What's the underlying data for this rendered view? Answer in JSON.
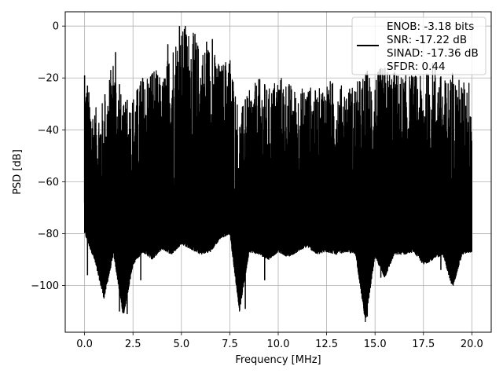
{
  "chart_data": {
    "type": "line",
    "title": "",
    "xlabel": "Frequency [MHz]",
    "ylabel": "PSD [dB]",
    "xlim": [
      -1.0,
      21.0
    ],
    "ylim": [
      -118,
      5.5
    ],
    "grid": true,
    "legend_position": "top-right",
    "x_ticks": [
      0.0,
      2.5,
      5.0,
      7.5,
      10.0,
      12.5,
      15.0,
      17.5,
      20.0
    ],
    "x_tick_labels": [
      "0.0",
      "2.5",
      "5.0",
      "7.5",
      "10.0",
      "12.5",
      "15.0",
      "17.5",
      "20.0"
    ],
    "y_ticks": [
      0,
      -20,
      -40,
      -60,
      -80,
      -100
    ],
    "y_tick_labels": [
      "0",
      "−20",
      "−40",
      "−60",
      "−80",
      "−100"
    ],
    "legend_lines": [
      "ENOB: -3.18 bits",
      "SNR: -17.22 dB",
      "SINAD: -17.36 dB",
      "SFDR: 0.44"
    ],
    "series": [
      {
        "color": "#000000",
        "x": [
          0.0,
          0.5,
          1.0,
          1.5,
          2.0,
          2.5,
          3.0,
          3.5,
          4.0,
          4.5,
          5.0,
          5.5,
          6.0,
          6.5,
          7.0,
          7.5,
          8.0,
          8.5,
          9.0,
          9.5,
          10.0,
          10.5,
          11.0,
          11.5,
          12.0,
          12.5,
          13.0,
          13.5,
          14.0,
          14.5,
          15.0,
          15.5,
          16.0,
          16.5,
          17.0,
          17.5,
          18.0,
          18.5,
          19.0,
          19.5,
          20.0
        ],
        "upper": [
          -19,
          -32,
          -28,
          -11,
          -30,
          -26,
          -20,
          -14,
          -21,
          -6,
          0,
          -1,
          -8,
          -6,
          -15,
          -10,
          -33,
          -25,
          -20,
          -24,
          -18,
          -21,
          -25,
          -22,
          -25,
          -20,
          -22,
          -23,
          -22,
          -17,
          -18,
          -15,
          -17,
          -19,
          -18,
          -20,
          -13,
          -21,
          -18,
          -21,
          -20
        ],
        "lower": [
          -78,
          -88,
          -103,
          -86,
          -110,
          -90,
          -85,
          -88,
          -84,
          -86,
          -82,
          -84,
          -86,
          -85,
          -80,
          -78,
          -108,
          -85,
          -86,
          -88,
          -85,
          -87,
          -85,
          -83,
          -86,
          -85,
          -86,
          -85,
          -86,
          -112,
          -87,
          -95,
          -86,
          -86,
          -85,
          -90,
          -88,
          -86,
          -99,
          -86,
          -85
        ],
        "spikes_up": [
          [
            0.0,
            -19
          ],
          [
            1.6,
            -10
          ],
          [
            3.0,
            -20
          ],
          [
            4.3,
            -7
          ],
          [
            4.9,
            0
          ],
          [
            5.2,
            0
          ],
          [
            5.7,
            -3
          ],
          [
            6.3,
            -6
          ],
          [
            6.6,
            -5
          ],
          [
            7.3,
            -17
          ]
        ],
        "spikes_down": [
          [
            0.15,
            -96
          ],
          [
            1.05,
            -103
          ],
          [
            1.8,
            -110
          ],
          [
            2.2,
            -111
          ],
          [
            2.9,
            -98
          ],
          [
            8.3,
            -109
          ],
          [
            9.3,
            -98
          ],
          [
            14.6,
            -112
          ],
          [
            15.3,
            -97
          ],
          [
            18.4,
            -94
          ],
          [
            19.0,
            -99
          ]
        ]
      }
    ]
  }
}
